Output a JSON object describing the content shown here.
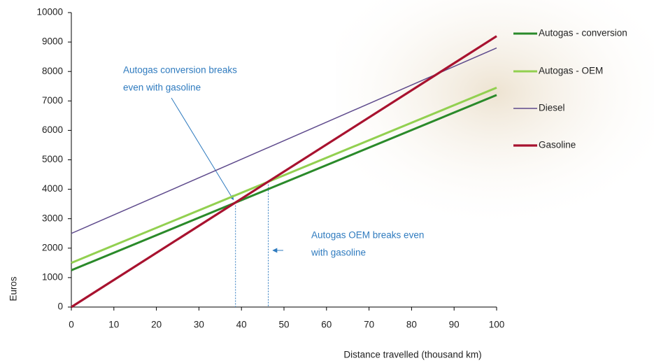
{
  "chart_data": {
    "type": "line",
    "x_label": "Distance travelled (thousand km)",
    "y_label": "Euros",
    "x": [
      0,
      100
    ],
    "series": [
      {
        "name": "Autogas - conversion",
        "color": "#2a8a2a",
        "values": [
          1250,
          7200
        ]
      },
      {
        "name": "Autogas - OEM",
        "color": "#92d050",
        "values": [
          1500,
          7450
        ]
      },
      {
        "name": "Diesel",
        "color": "#5e4a8c",
        "values": [
          2500,
          8800
        ]
      },
      {
        "name": "Gasoline",
        "color": "#a8122f",
        "values": [
          0,
          9200
        ]
      }
    ],
    "xlim": [
      0,
      100
    ],
    "xticks": [
      0,
      10,
      20,
      30,
      40,
      50,
      60,
      70,
      80,
      90,
      100
    ],
    "ylim": [
      0,
      10000
    ],
    "yticks": [
      0,
      1000,
      2000,
      3000,
      4000,
      5000,
      6000,
      7000,
      8000,
      9000,
      10000
    ],
    "grid": false,
    "legend": "right",
    "annotations": [
      {
        "lines": [
          "Autogas conversion breaks",
          "even with gasoline"
        ],
        "x": 38.6,
        "y": 3550
      },
      {
        "lines": [
          "Autogas OEM breaks even",
          "with gasoline"
        ],
        "x": 46.3,
        "y": 4260
      }
    ]
  }
}
